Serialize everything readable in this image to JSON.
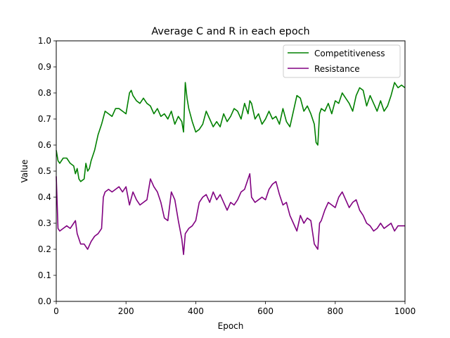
{
  "chart_data": {
    "type": "line",
    "title": "Average C and R in each epoch",
    "xlabel": "Epoch",
    "ylabel": "Value",
    "xlim": [
      0,
      1000
    ],
    "ylim": [
      0.0,
      1.0
    ],
    "grid": false,
    "legend_position": "top-right",
    "x_ticks": [
      0,
      200,
      400,
      600,
      800,
      1000
    ],
    "x_tick_labels": [
      "0",
      "200",
      "400",
      "600",
      "800",
      "1000"
    ],
    "y_ticks": [
      0.0,
      0.1,
      0.2,
      0.3,
      0.4,
      0.5,
      0.6,
      0.7,
      0.8,
      0.9,
      1.0
    ],
    "y_tick_labels": [
      "0.0",
      "0.1",
      "0.2",
      "0.3",
      "0.4",
      "0.5",
      "0.6",
      "0.7",
      "0.8",
      "0.9",
      "1.0"
    ],
    "series": [
      {
        "name": "Competitiveness",
        "color": "#008000",
        "x": [
          0,
          5,
          10,
          20,
          30,
          40,
          50,
          55,
          60,
          65,
          70,
          80,
          85,
          90,
          95,
          100,
          110,
          120,
          130,
          140,
          150,
          160,
          170,
          180,
          190,
          200,
          210,
          215,
          220,
          230,
          240,
          250,
          260,
          270,
          280,
          290,
          300,
          310,
          320,
          330,
          340,
          350,
          360,
          365,
          370,
          375,
          380,
          390,
          400,
          410,
          420,
          430,
          440,
          450,
          460,
          470,
          480,
          490,
          500,
          510,
          520,
          530,
          540,
          550,
          555,
          560,
          570,
          580,
          590,
          600,
          610,
          620,
          630,
          640,
          650,
          660,
          670,
          680,
          690,
          700,
          710,
          720,
          730,
          740,
          745,
          750,
          755,
          760,
          770,
          780,
          790,
          800,
          810,
          820,
          830,
          840,
          850,
          860,
          870,
          880,
          890,
          900,
          910,
          920,
          930,
          940,
          950,
          960,
          970,
          980,
          990,
          1000
        ],
        "values": [
          0.58,
          0.54,
          0.53,
          0.55,
          0.55,
          0.53,
          0.52,
          0.49,
          0.51,
          0.47,
          0.46,
          0.47,
          0.53,
          0.5,
          0.51,
          0.54,
          0.58,
          0.64,
          0.68,
          0.73,
          0.72,
          0.71,
          0.74,
          0.74,
          0.73,
          0.72,
          0.8,
          0.81,
          0.79,
          0.77,
          0.76,
          0.78,
          0.76,
          0.75,
          0.72,
          0.74,
          0.71,
          0.72,
          0.7,
          0.73,
          0.68,
          0.71,
          0.69,
          0.65,
          0.84,
          0.78,
          0.74,
          0.69,
          0.65,
          0.66,
          0.68,
          0.73,
          0.7,
          0.67,
          0.69,
          0.67,
          0.72,
          0.69,
          0.71,
          0.74,
          0.73,
          0.7,
          0.76,
          0.72,
          0.77,
          0.76,
          0.7,
          0.72,
          0.68,
          0.7,
          0.73,
          0.7,
          0.71,
          0.68,
          0.74,
          0.69,
          0.67,
          0.73,
          0.79,
          0.78,
          0.73,
          0.75,
          0.72,
          0.68,
          0.61,
          0.6,
          0.72,
          0.74,
          0.73,
          0.76,
          0.72,
          0.77,
          0.76,
          0.8,
          0.78,
          0.76,
          0.73,
          0.79,
          0.82,
          0.81,
          0.75,
          0.79,
          0.76,
          0.73,
          0.77,
          0.73,
          0.75,
          0.79,
          0.84,
          0.82,
          0.83,
          0.82
        ]
      },
      {
        "name": "Resistance",
        "color": "#800080",
        "x": [
          0,
          5,
          10,
          20,
          30,
          40,
          50,
          55,
          60,
          70,
          80,
          90,
          100,
          110,
          120,
          130,
          135,
          140,
          150,
          160,
          170,
          180,
          190,
          200,
          210,
          220,
          230,
          240,
          250,
          260,
          270,
          280,
          290,
          300,
          310,
          320,
          330,
          340,
          350,
          360,
          365,
          370,
          380,
          390,
          400,
          410,
          420,
          430,
          440,
          450,
          460,
          470,
          480,
          490,
          500,
          510,
          520,
          530,
          540,
          550,
          555,
          560,
          570,
          580,
          590,
          600,
          610,
          620,
          630,
          640,
          650,
          660,
          670,
          680,
          690,
          700,
          710,
          720,
          730,
          740,
          750,
          755,
          760,
          770,
          780,
          790,
          800,
          810,
          820,
          830,
          840,
          850,
          860,
          870,
          880,
          890,
          900,
          910,
          920,
          930,
          940,
          950,
          960,
          970,
          980,
          990,
          1000
        ],
        "values": [
          0.48,
          0.28,
          0.27,
          0.28,
          0.29,
          0.28,
          0.3,
          0.31,
          0.26,
          0.22,
          0.22,
          0.2,
          0.23,
          0.25,
          0.26,
          0.28,
          0.4,
          0.42,
          0.43,
          0.42,
          0.43,
          0.44,
          0.42,
          0.44,
          0.37,
          0.42,
          0.39,
          0.37,
          0.38,
          0.39,
          0.47,
          0.44,
          0.42,
          0.38,
          0.32,
          0.31,
          0.42,
          0.39,
          0.31,
          0.24,
          0.18,
          0.26,
          0.28,
          0.29,
          0.31,
          0.38,
          0.4,
          0.41,
          0.38,
          0.42,
          0.39,
          0.41,
          0.38,
          0.35,
          0.38,
          0.37,
          0.39,
          0.42,
          0.43,
          0.47,
          0.49,
          0.4,
          0.38,
          0.39,
          0.4,
          0.39,
          0.43,
          0.45,
          0.46,
          0.41,
          0.37,
          0.38,
          0.33,
          0.3,
          0.27,
          0.33,
          0.3,
          0.32,
          0.31,
          0.22,
          0.2,
          0.3,
          0.31,
          0.35,
          0.38,
          0.37,
          0.36,
          0.4,
          0.42,
          0.39,
          0.36,
          0.38,
          0.39,
          0.35,
          0.33,
          0.3,
          0.29,
          0.27,
          0.28,
          0.3,
          0.28,
          0.29,
          0.3,
          0.27,
          0.29,
          0.29,
          0.29
        ]
      }
    ]
  }
}
